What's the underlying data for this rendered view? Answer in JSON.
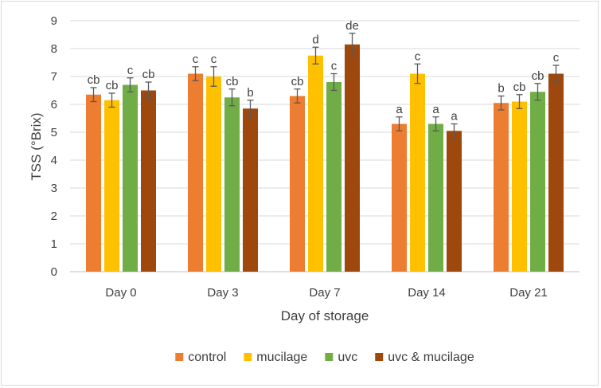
{
  "chart_data": {
    "type": "bar",
    "title": "",
    "xlabel": "Day of storage",
    "ylabel": "TSS (°Brix)",
    "ylim": [
      0,
      9
    ],
    "yticks": [
      0,
      1,
      2,
      3,
      4,
      5,
      6,
      7,
      8,
      9
    ],
    "categories": [
      "Day 0",
      "Day 3",
      "Day 7",
      "Day 14",
      "Day 21"
    ],
    "grid": true,
    "legend_position": "bottom",
    "series": [
      {
        "name": "control",
        "color": "#ED7D31",
        "values": [
          6.35,
          7.1,
          6.3,
          5.3,
          6.05
        ],
        "errors": [
          0.25,
          0.25,
          0.25,
          0.25,
          0.25
        ],
        "labels": [
          "cb",
          "c",
          "cb",
          "a",
          "b"
        ]
      },
      {
        "name": "mucilage",
        "color": "#FFC000",
        "values": [
          6.15,
          7.0,
          7.75,
          7.1,
          6.1
        ],
        "errors": [
          0.25,
          0.35,
          0.3,
          0.35,
          0.25
        ],
        "labels": [
          "cb",
          "c",
          "d",
          "c",
          "cb"
        ]
      },
      {
        "name": "uvc",
        "color": "#70AD47",
        "values": [
          6.7,
          6.25,
          6.8,
          5.3,
          6.45
        ],
        "errors": [
          0.25,
          0.3,
          0.3,
          0.25,
          0.3
        ],
        "labels": [
          "c",
          "cb",
          "c",
          "a",
          "cb"
        ]
      },
      {
        "name": "uvc & mucilage",
        "color": "#9E480E",
        "values": [
          6.5,
          5.85,
          8.15,
          5.05,
          7.1
        ],
        "errors": [
          0.3,
          0.3,
          0.4,
          0.25,
          0.3
        ],
        "labels": [
          "cb",
          "b",
          "de",
          "a",
          "c"
        ]
      }
    ]
  }
}
